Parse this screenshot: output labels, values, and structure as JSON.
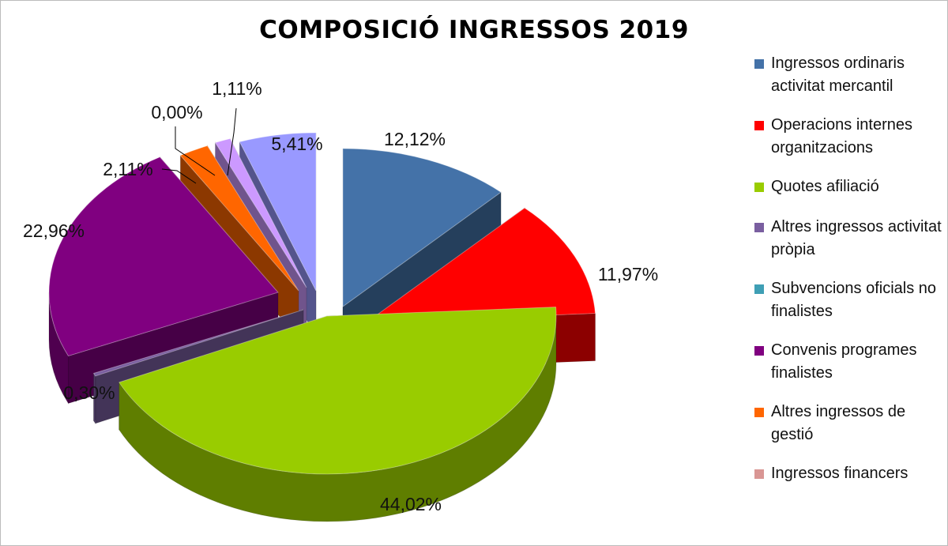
{
  "chart_data": {
    "type": "pie",
    "title": "COMPOSICIÓ INGRESSOS 2019",
    "slices": [
      {
        "name": "Ingressos ordinaris activitat mercantil",
        "label": "12,12%",
        "value": 12.12,
        "color": "#4472a8"
      },
      {
        "name": "Operacions internes organitzacions",
        "label": "11,97%",
        "value": 11.97,
        "color": "#ff0000"
      },
      {
        "name": "Quotes afiliació",
        "label": "44,02%",
        "value": 44.02,
        "color": "#99cc00"
      },
      {
        "name": "Altres ingressos activitat pròpia",
        "label": "0,30%",
        "value": 0.3,
        "color": "#7a5fa0"
      },
      {
        "name": "Subvencions oficials no finalistes",
        "label": "0,00%",
        "value": 0.0,
        "color": "#3f9fb5"
      },
      {
        "name": "Convenis programes finalistes",
        "label": "22,96%",
        "value": 22.96,
        "color": "#800080"
      },
      {
        "name": "Altres ingressos de gestió",
        "label": "2,11%",
        "value": 2.11,
        "color": "#ff6600"
      },
      {
        "name": "Ingressos financers",
        "label": "0,00%",
        "value": 0.0,
        "color": "#d99694"
      },
      {
        "name": "",
        "label": "1,11%",
        "value": 1.11,
        "color": "#cc99ff"
      },
      {
        "name": "",
        "label": "5,41%",
        "value": 5.41,
        "color": "#9999ff"
      }
    ],
    "legend_position": "right"
  }
}
